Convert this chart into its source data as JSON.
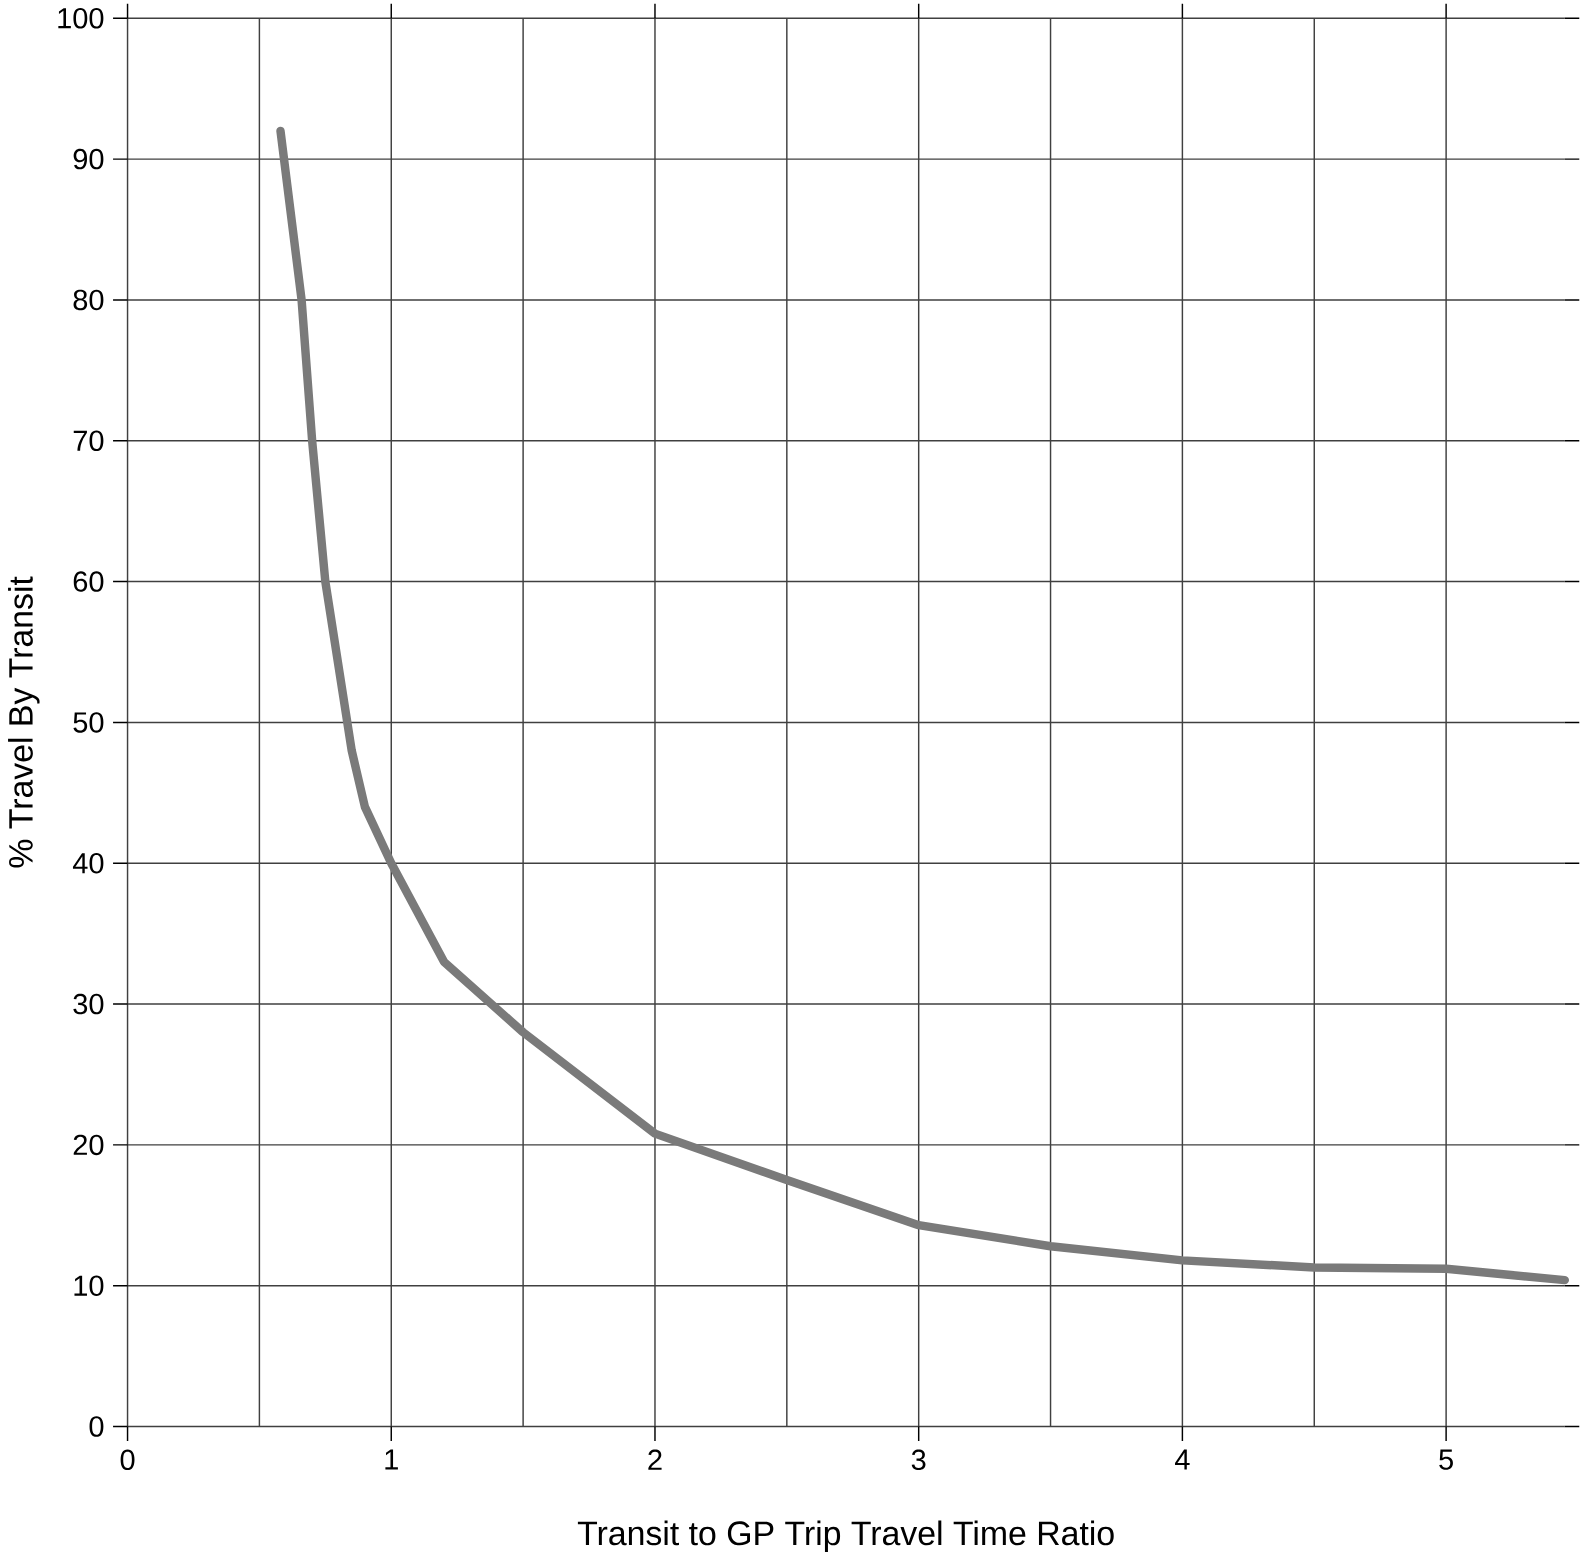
{
  "chart_data": {
    "type": "line",
    "xlabel": "Transit to GP Trip Travel Time Ratio",
    "ylabel": "% Travel By Transit",
    "x": [
      0.58,
      0.66,
      0.7,
      0.75,
      0.85,
      0.9,
      1.0,
      1.2,
      1.5,
      2.0,
      2.5,
      3.0,
      3.5,
      4.0,
      4.5,
      5.0,
      5.45
    ],
    "series": [
      {
        "color": "#7a7a7a",
        "values": [
          92,
          80,
          70,
          60,
          48,
          44,
          40,
          33,
          28,
          20.8,
          17.5,
          14.3,
          12.8,
          11.8,
          11.3,
          11.2,
          10.4
        ]
      }
    ],
    "xlim": [
      0,
      5.45
    ],
    "ylim": [
      0,
      100
    ],
    "xticks": [
      0,
      1,
      2,
      3,
      4,
      5
    ],
    "yticks": [
      0,
      10,
      20,
      30,
      40,
      50,
      60,
      70,
      80,
      90,
      100
    ],
    "grid": true,
    "marker": "none",
    "line_style": "solid"
  }
}
